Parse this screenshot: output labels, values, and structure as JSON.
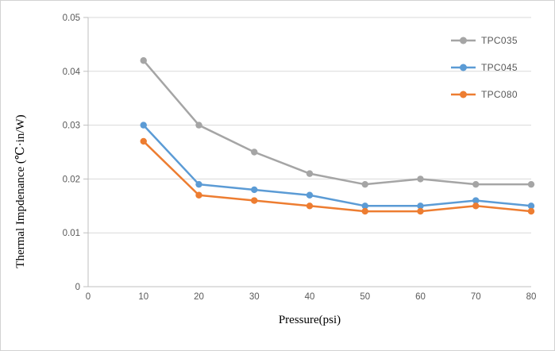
{
  "chart_data": {
    "type": "line",
    "title": "",
    "xlabel": "Pressure(psi)",
    "ylabel": "Thermal Impdenance (℃·in/W)",
    "x": [
      10,
      20,
      30,
      40,
      50,
      60,
      70,
      80
    ],
    "xlim": [
      0,
      80
    ],
    "ylim": [
      0,
      0.05
    ],
    "x_tick_labels": [
      "0",
      "10",
      "20",
      "30",
      "40",
      "50",
      "60",
      "70",
      "80"
    ],
    "x_tick_values": [
      0,
      10,
      20,
      30,
      40,
      50,
      60,
      70,
      80
    ],
    "y_tick_labels": [
      "0",
      "0.01",
      "0.02",
      "0.03",
      "0.04",
      "0.05"
    ],
    "y_tick_values": [
      0,
      0.01,
      0.02,
      0.03,
      0.04,
      0.05
    ],
    "grid": "horizontal-major",
    "legend_position": "top-right-inside",
    "series": [
      {
        "name": "TPC035",
        "color": "#a5a5a5",
        "values": [
          0.042,
          0.03,
          0.025,
          0.021,
          0.019,
          0.02,
          0.019,
          0.019
        ]
      },
      {
        "name": "TPC045",
        "color": "#5b9bd5",
        "values": [
          0.03,
          0.019,
          0.018,
          0.017,
          0.015,
          0.015,
          0.016,
          0.015
        ]
      },
      {
        "name": "TPC080",
        "color": "#ed7d31",
        "values": [
          0.027,
          0.017,
          0.016,
          0.015,
          0.014,
          0.014,
          0.015,
          0.014
        ]
      }
    ]
  },
  "style": {
    "background": "#ffffff",
    "border": "#d2d2d2",
    "gridline": "#d9d9d9",
    "axis_line": "#bfbfbf",
    "tick_label": "#595959",
    "legend_text": "#595959",
    "axis_title": "#000000"
  }
}
